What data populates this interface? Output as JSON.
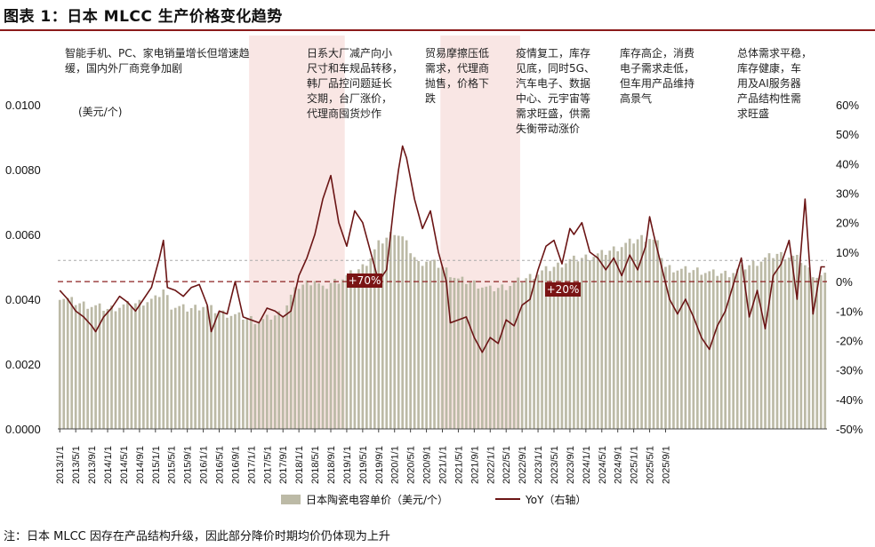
{
  "title": "图表 1：日本 MLCC 生产价格变化趋势",
  "note": "注：日本 MLCC 因存在产品结构升级，因此部分降价时期均价仍体现为上升",
  "chart_data": {
    "type": "bar+line",
    "title": "日本 MLCC 生产价格变化趋势",
    "unit_label": "(美元/个)",
    "left_axis": {
      "min": 0,
      "max": 0.01,
      "ticks": [
        "0.0000",
        "0.0020",
        "0.0040",
        "0.0060",
        "0.0080",
        "0.0100"
      ]
    },
    "right_axis": {
      "min": -50,
      "max": 60,
      "ticks": [
        "-50%",
        "-40%",
        "-30%",
        "-20%",
        "-10%",
        "0%",
        "10%",
        "20%",
        "30%",
        "40%",
        "50%",
        "60%"
      ]
    },
    "x_ticks": [
      "2013/1/1",
      "2013/5/1",
      "2013/9/1",
      "2014/1/1",
      "2014/5/1",
      "2014/9/1",
      "2015/1/1",
      "2015/5/1",
      "2015/9/1",
      "2016/1/1",
      "2016/5/1",
      "2016/9/1",
      "2017/1/1",
      "2017/5/1",
      "2017/9/1",
      "2018/1/1",
      "2018/5/1",
      "2018/9/1",
      "2019/1/1",
      "2019/5/1",
      "2019/9/1",
      "2020/1/1",
      "2020/5/1",
      "2020/9/1",
      "2021/1/1",
      "2021/5/1",
      "2021/9/1",
      "2022/1/1",
      "2022/5/1",
      "2022/9/1",
      "2023/1/1",
      "2023/5/1",
      "2023/9/1",
      "2024/1/1",
      "2024/5/1",
      "2024/9/1",
      "2025/1/1",
      "2025/5/1",
      "2025/9/1"
    ],
    "legend": {
      "bar": "日本陶瓷电容单价（美元/个）",
      "line": "YoY（右轴）"
    },
    "reference_lines": {
      "price_dotted": 0.0052,
      "yoy_dashed": 0
    },
    "colors": {
      "bar": "#bcbaa6",
      "line": "#6b1515",
      "shade": "#f9e6e4",
      "dashed": "#8b2020",
      "dotted": "#aaaaaa"
    },
    "price_anchors": [
      [
        0,
        0.0041
      ],
      [
        4,
        0.0039
      ],
      [
        8,
        0.0038
      ],
      [
        12,
        0.0037
      ],
      [
        16,
        0.0038
      ],
      [
        20,
        0.0039
      ],
      [
        24,
        0.004
      ],
      [
        26,
        0.0043
      ],
      [
        28,
        0.0038
      ],
      [
        32,
        0.0037
      ],
      [
        36,
        0.0038
      ],
      [
        40,
        0.0036
      ],
      [
        44,
        0.0035
      ],
      [
        48,
        0.0034
      ],
      [
        50,
        0.0033
      ],
      [
        52,
        0.0034
      ],
      [
        56,
        0.0036
      ],
      [
        58,
        0.0041
      ],
      [
        60,
        0.0044
      ],
      [
        64,
        0.0046
      ],
      [
        66,
        0.0043
      ],
      [
        68,
        0.0045
      ],
      [
        72,
        0.0047
      ],
      [
        76,
        0.005
      ],
      [
        78,
        0.0053
      ],
      [
        80,
        0.0057
      ],
      [
        82,
        0.0059
      ],
      [
        84,
        0.0061
      ],
      [
        86,
        0.0059
      ],
      [
        88,
        0.0055
      ],
      [
        90,
        0.0051
      ],
      [
        92,
        0.0052
      ],
      [
        96,
        0.005
      ],
      [
        100,
        0.0046
      ],
      [
        104,
        0.0045
      ],
      [
        108,
        0.0043
      ],
      [
        112,
        0.0044
      ],
      [
        116,
        0.0046
      ],
      [
        120,
        0.0048
      ],
      [
        124,
        0.005
      ],
      [
        128,
        0.0052
      ],
      [
        132,
        0.0053
      ],
      [
        136,
        0.0054
      ],
      [
        140,
        0.0056
      ],
      [
        144,
        0.0058
      ],
      [
        146,
        0.0059
      ],
      [
        148,
        0.0059
      ],
      [
        150,
        0.0057
      ],
      [
        152,
        0.005
      ],
      [
        156,
        0.0049
      ],
      [
        160,
        0.0049
      ],
      [
        164,
        0.0048
      ],
      [
        168,
        0.0048
      ],
      [
        172,
        0.005
      ],
      [
        176,
        0.0052
      ],
      [
        180,
        0.0054
      ],
      [
        184,
        0.0053
      ],
      [
        186,
        0.0052
      ],
      [
        188,
        0.0049
      ],
      [
        190,
        0.0047
      ],
      [
        192,
        0.0047
      ]
    ],
    "yoy_anchors": [
      [
        0,
        -3
      ],
      [
        2,
        -6
      ],
      [
        4,
        -10
      ],
      [
        6,
        -12
      ],
      [
        8,
        -15
      ],
      [
        9,
        -17
      ],
      [
        11,
        -12
      ],
      [
        13,
        -9
      ],
      [
        15,
        -5
      ],
      [
        17,
        -7
      ],
      [
        19,
        -10
      ],
      [
        21,
        -6
      ],
      [
        23,
        -2
      ],
      [
        25,
        8
      ],
      [
        26,
        14
      ],
      [
        27,
        -2
      ],
      [
        29,
        -3
      ],
      [
        31,
        -5
      ],
      [
        33,
        -2
      ],
      [
        35,
        -1
      ],
      [
        37,
        -8
      ],
      [
        38,
        -17
      ],
      [
        40,
        -10
      ],
      [
        42,
        -11
      ],
      [
        44,
        0
      ],
      [
        46,
        -12
      ],
      [
        48,
        -13
      ],
      [
        50,
        -14
      ],
      [
        52,
        -9
      ],
      [
        54,
        -10
      ],
      [
        56,
        -12
      ],
      [
        58,
        -10
      ],
      [
        60,
        2
      ],
      [
        62,
        8
      ],
      [
        64,
        16
      ],
      [
        66,
        28
      ],
      [
        68,
        36
      ],
      [
        70,
        20
      ],
      [
        72,
        12
      ],
      [
        74,
        24
      ],
      [
        76,
        20
      ],
      [
        78,
        10
      ],
      [
        80,
        0
      ],
      [
        82,
        4
      ],
      [
        84,
        28
      ],
      [
        85,
        38
      ],
      [
        86,
        46
      ],
      [
        87,
        42
      ],
      [
        89,
        28
      ],
      [
        91,
        18
      ],
      [
        93,
        24
      ],
      [
        95,
        10
      ],
      [
        97,
        0
      ],
      [
        98,
        -14
      ],
      [
        100,
        -13
      ],
      [
        102,
        -12
      ],
      [
        104,
        -19
      ],
      [
        106,
        -24
      ],
      [
        108,
        -19
      ],
      [
        110,
        -21
      ],
      [
        112,
        -13
      ],
      [
        114,
        -15
      ],
      [
        116,
        -8
      ],
      [
        118,
        -6
      ],
      [
        120,
        4
      ],
      [
        122,
        12
      ],
      [
        124,
        14
      ],
      [
        126,
        6
      ],
      [
        128,
        18
      ],
      [
        129,
        16
      ],
      [
        131,
        20
      ],
      [
        133,
        10
      ],
      [
        135,
        8
      ],
      [
        137,
        4
      ],
      [
        139,
        8
      ],
      [
        141,
        2
      ],
      [
        143,
        9
      ],
      [
        145,
        4
      ],
      [
        147,
        12
      ],
      [
        148,
        22
      ],
      [
        149,
        16
      ],
      [
        151,
        5
      ],
      [
        153,
        -6
      ],
      [
        155,
        -11
      ],
      [
        157,
        -6
      ],
      [
        159,
        -12
      ],
      [
        161,
        -19
      ],
      [
        163,
        -23
      ],
      [
        165,
        -15
      ],
      [
        167,
        -10
      ],
      [
        169,
        -1
      ],
      [
        171,
        8
      ],
      [
        173,
        -12
      ],
      [
        175,
        -3
      ],
      [
        177,
        -16
      ],
      [
        179,
        2
      ],
      [
        181,
        6
      ],
      [
        183,
        14
      ],
      [
        185,
        -6
      ],
      [
        187,
        28
      ],
      [
        189,
        -11
      ],
      [
        191,
        5
      ]
    ],
    "annotations": [
      {
        "lines": [
          "智能手机、PC、家电销量增长但增速趋",
          "缓，国内外厂商竞争加剧"
        ],
        "shaded": false
      },
      {
        "lines": [
          "日系大厂减产向小",
          "尺寸和车规品转移，",
          "韩厂品控问题延长",
          "交期，台厂涨价，",
          "代理商囤货炒作"
        ],
        "shaded": true
      },
      {
        "lines": [
          "贸易摩擦压低",
          "需求，代理商",
          "抛售，价格下",
          "跌"
        ],
        "shaded": false
      },
      {
        "lines": [
          "疫情复工，库存",
          "见底，同时5G、",
          "汽车电子、数据",
          "中心、元宇宙等",
          "需求旺盛，供需",
          "失衡带动涨价"
        ],
        "shaded": true
      },
      {
        "lines": [
          "库存高企，消费",
          "电子需求走低，",
          "但车用产品维持",
          "高景气"
        ],
        "shaded": false
      },
      {
        "lines": [
          "总体需求平稳，",
          "库存健康，车",
          "用及AI服务器",
          "产品结构性需",
          "求旺盛"
        ],
        "shaded": false
      }
    ],
    "callouts": [
      "+70%",
      "+20%"
    ]
  }
}
